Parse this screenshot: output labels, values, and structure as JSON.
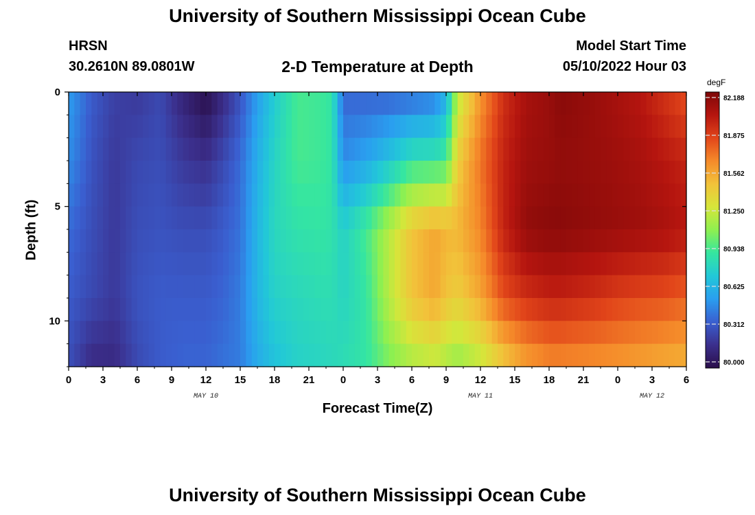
{
  "header": {
    "title": "University of Southern Mississippi Ocean Cube",
    "station": "HRSN",
    "coords": "30.2610N  89.0801W",
    "subtitle": "2-D Temperature at Depth",
    "model_start_label": "Model Start Time",
    "model_start_value": "05/10/2022 Hour 03"
  },
  "footer": {
    "title": "University of Southern Mississippi Ocean Cube"
  },
  "colors": {
    "scale": [
      "#2a0e4a",
      "#3b2f8c",
      "#3a5fd0",
      "#2a9ef0",
      "#22c8d8",
      "#35e6a0",
      "#8ef050",
      "#d6e63a",
      "#f2c23a",
      "#f58a2a",
      "#e2461a",
      "#b5150f",
      "#7e0808"
    ]
  },
  "chart_data": {
    "type": "heatmap",
    "title": "2-D Temperature at Depth",
    "xlabel": "Forecast Time(Z)",
    "ylabel": "Depth (ft)",
    "x_tick_labels": [
      "0",
      "3",
      "6",
      "9",
      "12",
      "15",
      "18",
      "21",
      "0",
      "3",
      "6",
      "9",
      "12",
      "15",
      "18",
      "21",
      "0",
      "3",
      "6"
    ],
    "x_range_hours": [
      0,
      54
    ],
    "date_labels": [
      {
        "text": "MAY 10",
        "hour": 12
      },
      {
        "text": "MAY 11",
        "hour": 36
      },
      {
        "text": "MAY 12",
        "hour": 51
      }
    ],
    "y_tick_labels": [
      "0",
      "5",
      "10"
    ],
    "y_range_ft": [
      0,
      12
    ],
    "y_ticks_ft": [
      0,
      5,
      10
    ],
    "colorbar": {
      "units": "degF",
      "labels": [
        "82.188",
        "81.875",
        "81.562",
        "81.250",
        "80.938",
        "80.625",
        "80.312",
        "80.000"
      ],
      "range": [
        80.0,
        82.188
      ]
    },
    "grid_hours": [
      0,
      2,
      4,
      6,
      8,
      10,
      12,
      13.5,
      15,
      16.5,
      18,
      20,
      22,
      23,
      24,
      26,
      28,
      30,
      32,
      33,
      34,
      36,
      38,
      40,
      42,
      43,
      46,
      48,
      50,
      52,
      54
    ],
    "grid_depths_ft": [
      0,
      3,
      6,
      9,
      12
    ],
    "values_degF": [
      [
        80.55,
        80.35,
        80.25,
        80.22,
        80.28,
        80.12,
        80.0,
        80.15,
        80.32,
        80.55,
        80.75,
        80.95,
        80.93,
        80.9,
        80.38,
        80.37,
        80.36,
        80.38,
        80.43,
        80.6,
        81.2,
        81.6,
        81.9,
        82.05,
        82.1,
        82.15,
        82.1,
        82.05,
        82.0,
        81.9,
        81.8
      ],
      [
        80.5,
        80.32,
        80.22,
        80.28,
        80.3,
        80.22,
        80.18,
        80.28,
        80.4,
        80.62,
        80.8,
        80.95,
        80.93,
        80.9,
        80.5,
        80.58,
        80.72,
        80.88,
        80.9,
        80.95,
        81.4,
        81.7,
        81.95,
        82.08,
        82.1,
        82.12,
        82.1,
        82.08,
        82.05,
        82.0,
        81.95
      ],
      [
        80.4,
        80.3,
        80.22,
        80.3,
        80.32,
        80.3,
        80.3,
        80.35,
        80.42,
        80.65,
        80.82,
        80.88,
        80.9,
        80.88,
        80.78,
        80.95,
        81.2,
        81.45,
        81.55,
        81.5,
        81.5,
        81.65,
        81.95,
        82.12,
        82.15,
        82.15,
        82.12,
        82.1,
        82.08,
        82.05,
        82.0
      ],
      [
        80.35,
        80.28,
        80.22,
        80.32,
        80.35,
        80.35,
        80.35,
        80.38,
        80.45,
        80.65,
        80.78,
        80.82,
        80.85,
        80.85,
        80.8,
        80.9,
        81.2,
        81.45,
        81.55,
        81.45,
        81.4,
        81.55,
        81.8,
        81.9,
        81.95,
        81.95,
        81.9,
        81.85,
        81.82,
        81.8,
        81.75
      ],
      [
        80.3,
        80.15,
        80.15,
        80.28,
        80.35,
        80.38,
        80.38,
        80.42,
        80.45,
        80.6,
        80.7,
        80.78,
        80.8,
        80.82,
        80.85,
        80.9,
        81.05,
        81.15,
        81.2,
        81.15,
        81.1,
        81.2,
        81.4,
        81.55,
        81.62,
        81.62,
        81.6,
        81.58,
        81.55,
        81.52,
        81.5
      ]
    ]
  }
}
